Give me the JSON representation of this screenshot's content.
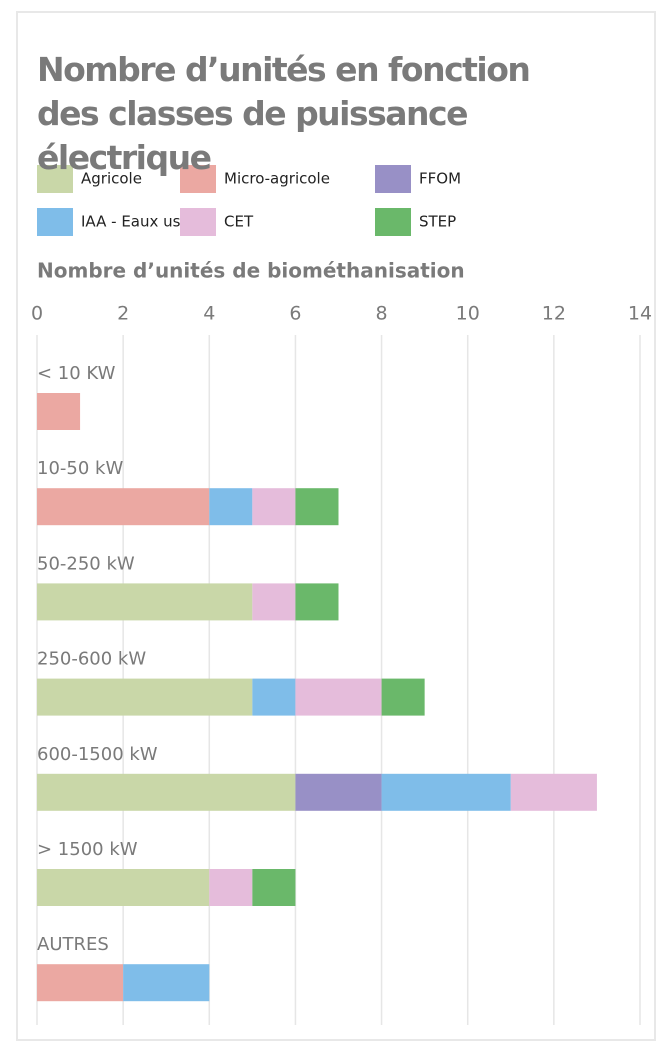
{
  "chart_data": {
    "type": "stacked-barh",
    "title": "Nombre d’unités en fonction des classes de puissance électrique",
    "xlabel": "Nombre d’unités de biométhanisation",
    "categories": [
      "< 10 KW",
      "10-50 kW",
      "50-250 kW",
      "250-600 kW",
      "600-1500 kW",
      "> 1500 kW",
      "AUTRES"
    ],
    "series": [
      {
        "name": "Agricole",
        "color": "#c9d7a8",
        "values": [
          0,
          0,
          5,
          5,
          6,
          4,
          0
        ]
      },
      {
        "name": "Micro-agricole",
        "color": "#eba8a2",
        "values": [
          1,
          4,
          0,
          0,
          0,
          0,
          2
        ]
      },
      {
        "name": "FFOM",
        "color": "#9890c6",
        "values": [
          0,
          0,
          0,
          0,
          2,
          0,
          0
        ]
      },
      {
        "name": "IAA - Eaux usées",
        "color": "#7fbde9",
        "values": [
          0,
          1,
          0,
          1,
          3,
          0,
          2
        ]
      },
      {
        "name": "CET",
        "color": "#e5bcdb",
        "values": [
          0,
          1,
          1,
          2,
          2,
          1,
          0
        ]
      },
      {
        "name": "STEP",
        "color": "#6ab86a",
        "values": [
          0,
          1,
          1,
          1,
          0,
          1,
          0
        ]
      }
    ],
    "xlim": [
      0,
      14
    ],
    "xticks": [
      0,
      2,
      4,
      6,
      8,
      10,
      12,
      14
    ],
    "grid": true
  }
}
